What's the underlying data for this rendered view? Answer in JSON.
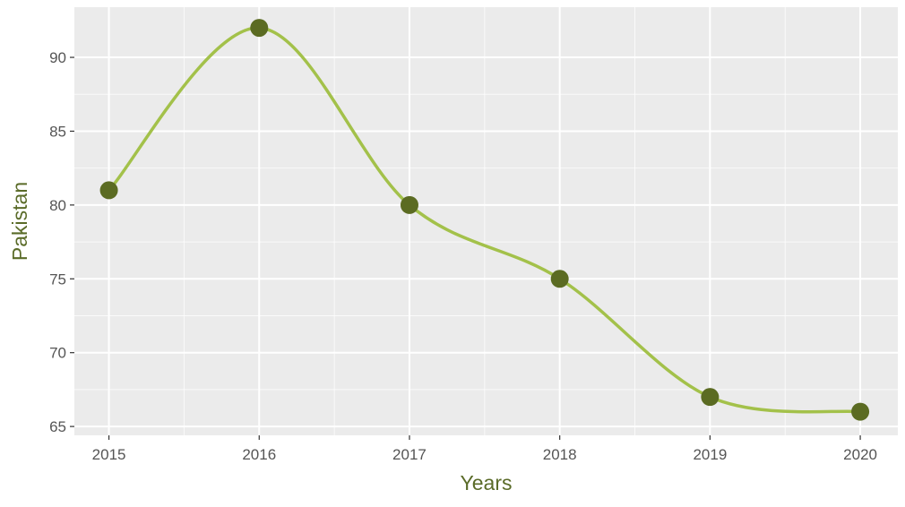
{
  "chart_data": {
    "type": "line",
    "title": "",
    "xlabel": "Years",
    "ylabel": "Pakistan",
    "x": [
      2015,
      2016,
      2017,
      2018,
      2019,
      2020
    ],
    "series": [
      {
        "values": [
          81,
          92,
          80,
          75,
          67,
          66
        ]
      }
    ],
    "xlim": [
      2014.77,
      2020.25
    ],
    "ylim": [
      64.4,
      93.4
    ],
    "xticks": [
      "2015",
      "2016",
      "2017",
      "2018",
      "2019",
      "2020"
    ],
    "yticks": [
      65,
      70,
      75,
      80,
      85,
      90
    ],
    "smooth": true,
    "grid": true,
    "legend": "none",
    "colors": {
      "panel": "#ebebeb",
      "grid": "#ffffff",
      "line": "#a3c14a",
      "point": "#5b6b22",
      "axis_title": "#5a6b28",
      "tick": "#555555"
    }
  }
}
